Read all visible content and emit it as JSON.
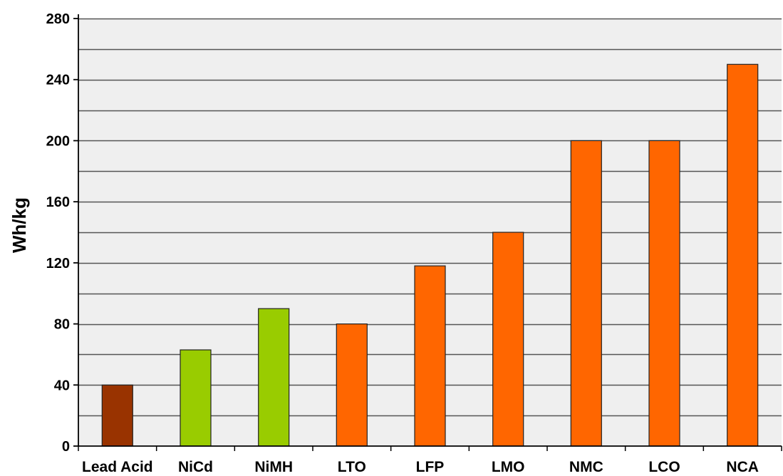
{
  "chart_data": {
    "type": "bar",
    "title": "",
    "xlabel": "",
    "ylabel": "Wh/kg",
    "categories": [
      "Lead Acid",
      "NiCd",
      "NiMH",
      "LTO",
      "LFP",
      "LMO",
      "NMC",
      "LCO",
      "NCA"
    ],
    "values": [
      40,
      63,
      90,
      80,
      118,
      140,
      200,
      200,
      250
    ],
    "colors": [
      "#993300",
      "#99cc00",
      "#99cc00",
      "#ff6600",
      "#ff6600",
      "#ff6600",
      "#ff6600",
      "#ff6600",
      "#ff6600"
    ],
    "ylim": [
      0,
      280
    ],
    "yticks": [
      0,
      40,
      80,
      120,
      160,
      200,
      240,
      280
    ],
    "minor_gridlines": [
      20,
      60,
      100,
      140,
      180,
      220,
      260
    ],
    "grid": true,
    "legend": "none",
    "plot_background": "#efefef"
  }
}
